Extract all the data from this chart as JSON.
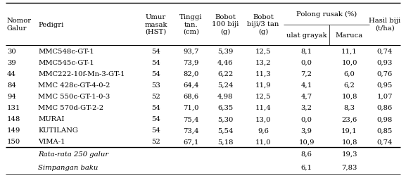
{
  "rows": [
    [
      "30",
      "MMC548c-GT-1",
      "54",
      "93,7",
      "5,39",
      "12,5",
      "8,1",
      "11,1",
      "0,74"
    ],
    [
      "39",
      "MMC545c-GT-1",
      "54",
      "73,9",
      "4,46",
      "13,2",
      "0,0",
      "10,0",
      "0,93"
    ],
    [
      "44",
      "MMC222-10f-Mn-3-GT-1",
      "54",
      "82,0",
      "6,22",
      "11,3",
      "7,2",
      "6,0",
      "0,76"
    ],
    [
      "84",
      "MMC 428c-GT-4-0-2",
      "53",
      "64,4",
      "5,24",
      "11,9",
      "4,1",
      "6,2",
      "0,95"
    ],
    [
      "94",
      "MMC 550c-GT-1-0-3",
      "52",
      "68,6",
      "4,98",
      "12,5",
      "4,7",
      "10,8",
      "1,07"
    ],
    [
      "131",
      "MMC 570d-GT-2-2",
      "54",
      "71,0",
      "6,35",
      "11,4",
      "3,2",
      "8,3",
      "0,86"
    ],
    [
      "148",
      "MURAI",
      "54",
      "75,4",
      "5,30",
      "13,0",
      "0,0",
      "23,6",
      "0,98"
    ],
    [
      "149",
      "KUTILANG",
      "54",
      "73,4",
      "5,54",
      "9,6",
      "3,9",
      "19,1",
      "0,85"
    ],
    [
      "150",
      "VIMA-1",
      "52",
      "67,1",
      "5,18",
      "11,0",
      "10,9",
      "10,8",
      "0,74"
    ]
  ],
  "footer_rows": [
    [
      "",
      "Rata-rata 250 galur",
      "",
      "",
      "",
      "",
      "8,6",
      "19,3",
      ""
    ],
    [
      "",
      "Simpangan baku",
      "",
      "",
      "",
      "",
      "6,1",
      "7,83",
      ""
    ]
  ],
  "col_aligns": [
    "left",
    "left",
    "center",
    "center",
    "center",
    "center",
    "center",
    "center",
    "center"
  ],
  "background_color": "#ffffff",
  "text_color": "#000000",
  "line_color": "#000000",
  "font_size": 7.2,
  "header_font_size": 7.2
}
